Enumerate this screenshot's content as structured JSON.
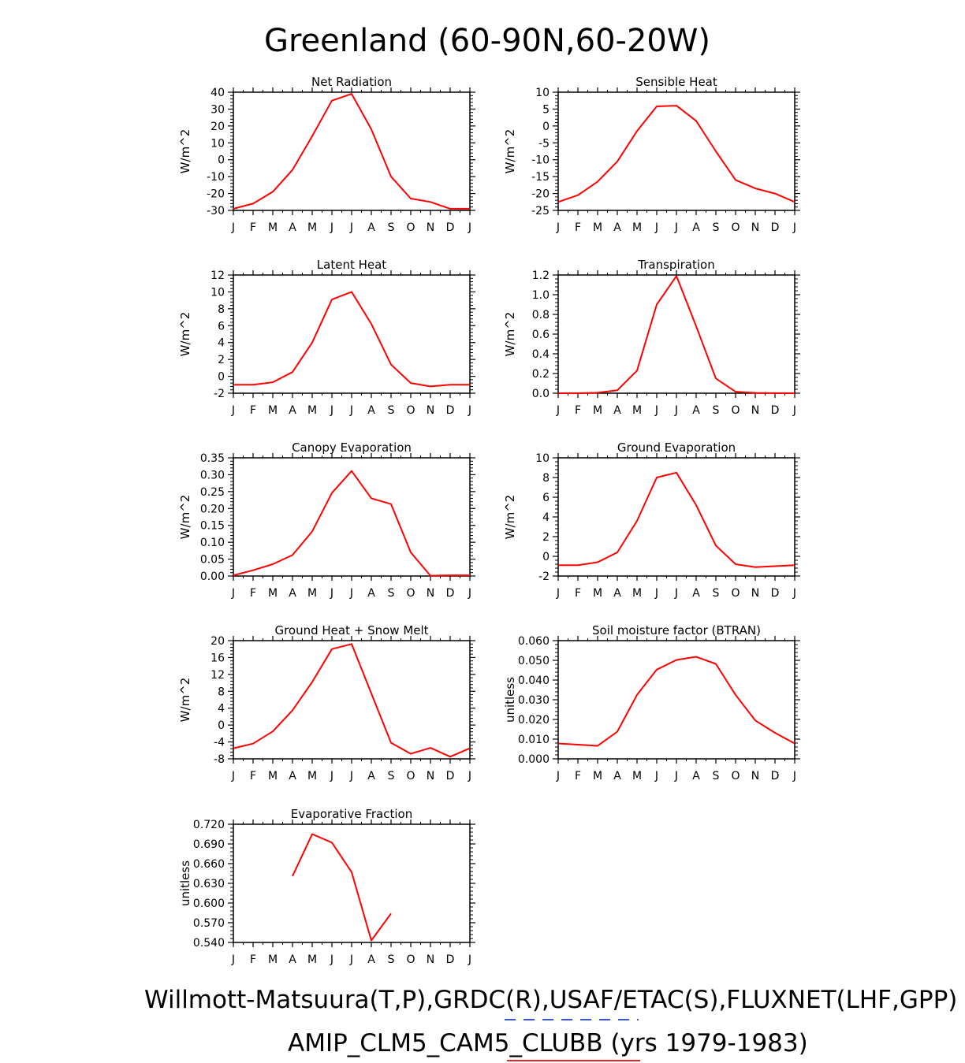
{
  "title": "Greenland (60-90N,60-20W)",
  "footer": {
    "line1": "Willmott-Matsuura(T,P),GRDC(R),USAF/ETAC(S),FLUXNET(LHF,GPP)",
    "line2": "AMIP_CLM5_CAM5_CLUBB (yrs 1979-1983)",
    "legend_colors": {
      "observations": "#3355ee",
      "model": "#ee2222"
    }
  },
  "colors": {
    "series": "#ff0000",
    "axes": "#000000"
  },
  "months": [
    "J",
    "F",
    "M",
    "A",
    "M",
    "J",
    "J",
    "A",
    "S",
    "O",
    "N",
    "D",
    "J"
  ],
  "chart_data": [
    {
      "type": "line",
      "title": "Net Radiation",
      "ylabel": "W/m^2",
      "ylim": [
        -30,
        40
      ],
      "yticks": [
        "-30",
        "-20",
        "-10",
        "0",
        "10",
        "20",
        "30",
        "40"
      ],
      "x": [
        "J",
        "F",
        "M",
        "A",
        "M",
        "J",
        "J",
        "A",
        "S",
        "O",
        "N",
        "D",
        "J"
      ],
      "values": [
        -29,
        -26,
        -19,
        -6,
        14,
        35,
        39,
        18,
        -10,
        -23,
        -25,
        -29,
        -29
      ]
    },
    {
      "type": "line",
      "title": "Sensible Heat",
      "ylabel": "W/m^2",
      "ylim": [
        -25,
        10
      ],
      "yticks": [
        "-25",
        "-20",
        "-15",
        "-10",
        "-5",
        "0",
        "5",
        "10"
      ],
      "x": [
        "J",
        "F",
        "M",
        "A",
        "M",
        "J",
        "J",
        "A",
        "S",
        "O",
        "N",
        "D",
        "J"
      ],
      "values": [
        -22.5,
        -20.5,
        -16.5,
        -10.5,
        -1.5,
        5.8,
        6,
        1.5,
        -7.5,
        -16,
        -18.5,
        -20,
        -22.5
      ]
    },
    {
      "type": "line",
      "title": "Latent Heat",
      "ylabel": "W/m^2",
      "ylim": [
        -2,
        12
      ],
      "yticks": [
        "-2",
        "0",
        "2",
        "4",
        "6",
        "8",
        "10",
        "12"
      ],
      "x": [
        "J",
        "F",
        "M",
        "A",
        "M",
        "J",
        "J",
        "A",
        "S",
        "O",
        "N",
        "D",
        "J"
      ],
      "values": [
        -1,
        -1,
        -0.7,
        0.5,
        4,
        9.1,
        10,
        6.2,
        1.4,
        -0.8,
        -1.2,
        -1,
        -1
      ]
    },
    {
      "type": "line",
      "title": "Transpiration",
      "ylabel": "W/m^2",
      "ylim": [
        0,
        1.2
      ],
      "yticks": [
        "0.0",
        "0.2",
        "0.4",
        "0.6",
        "0.8",
        "1.0",
        "1.2"
      ],
      "x": [
        "J",
        "F",
        "M",
        "A",
        "M",
        "J",
        "J",
        "A",
        "S",
        "O",
        "N",
        "D",
        "J"
      ],
      "values": [
        0,
        0,
        0.005,
        0.03,
        0.23,
        0.9,
        1.19,
        0.68,
        0.15,
        0.015,
        0.003,
        0.001,
        0
      ]
    },
    {
      "type": "line",
      "title": "Canopy Evaporation",
      "ylabel": "W/m^2",
      "ylim": [
        0,
        0.35
      ],
      "yticks": [
        "0.00",
        "0.05",
        "0.10",
        "0.15",
        "0.20",
        "0.25",
        "0.30",
        "0.35"
      ],
      "x": [
        "J",
        "F",
        "M",
        "A",
        "M",
        "J",
        "J",
        "A",
        "S",
        "O",
        "N",
        "D",
        "J"
      ],
      "values": [
        0.002,
        0.017,
        0.035,
        0.062,
        0.132,
        0.246,
        0.311,
        0.23,
        0.213,
        0.07,
        0.001,
        0.002,
        0.002
      ]
    },
    {
      "type": "line",
      "title": "Ground Evaporation",
      "ylabel": "W/m^2",
      "ylim": [
        -2,
        10
      ],
      "yticks": [
        "-2",
        "0",
        "2",
        "4",
        "6",
        "8",
        "10"
      ],
      "x": [
        "J",
        "F",
        "M",
        "A",
        "M",
        "J",
        "J",
        "A",
        "S",
        "O",
        "N",
        "D",
        "J"
      ],
      "values": [
        -0.9,
        -0.9,
        -0.6,
        0.4,
        3.6,
        8,
        8.5,
        5.2,
        1.1,
        -0.8,
        -1.1,
        -1,
        -0.9
      ]
    },
    {
      "type": "line",
      "title": "Ground Heat + Snow Melt",
      "ylabel": "W/m^2",
      "ylim": [
        -8,
        20
      ],
      "yticks": [
        "-8",
        "-4",
        "0",
        "4",
        "8",
        "12",
        "16",
        "20"
      ],
      "x": [
        "J",
        "F",
        "M",
        "A",
        "M",
        "J",
        "J",
        "A",
        "S",
        "O",
        "N",
        "D",
        "J"
      ],
      "values": [
        -5.5,
        -4.4,
        -1.5,
        3.5,
        10.2,
        18,
        19.2,
        7.5,
        -4.2,
        -6.8,
        -5.4,
        -7.5,
        -5.5
      ]
    },
    {
      "type": "line",
      "title": "Soil moisture factor (BTRAN)",
      "ylabel": "unitless",
      "ylim": [
        0,
        0.06
      ],
      "yticks": [
        "0.000",
        "0.010",
        "0.020",
        "0.030",
        "0.040",
        "0.050",
        "0.060"
      ],
      "x": [
        "J",
        "F",
        "M",
        "A",
        "M",
        "J",
        "J",
        "A",
        "S",
        "O",
        "N",
        "D",
        "J"
      ],
      "values": [
        0.0078,
        0.0072,
        0.0066,
        0.0138,
        0.0325,
        0.0453,
        0.0502,
        0.0518,
        0.0482,
        0.0325,
        0.0195,
        0.0132,
        0.0078
      ]
    },
    {
      "type": "line",
      "title": "Evaporative Fraction",
      "ylabel": "unitless",
      "ylim": [
        0.54,
        0.72
      ],
      "yticks": [
        "0.540",
        "0.570",
        "0.600",
        "0.630",
        "0.660",
        "0.690",
        "0.720"
      ],
      "x": [
        "J",
        "F",
        "M",
        "A",
        "M",
        "J",
        "J",
        "A",
        "S",
        "O",
        "N",
        "D",
        "J"
      ],
      "values": [
        null,
        null,
        null,
        0.641,
        0.705,
        0.692,
        0.647,
        0.543,
        0.584,
        null,
        null,
        null,
        null
      ]
    }
  ]
}
